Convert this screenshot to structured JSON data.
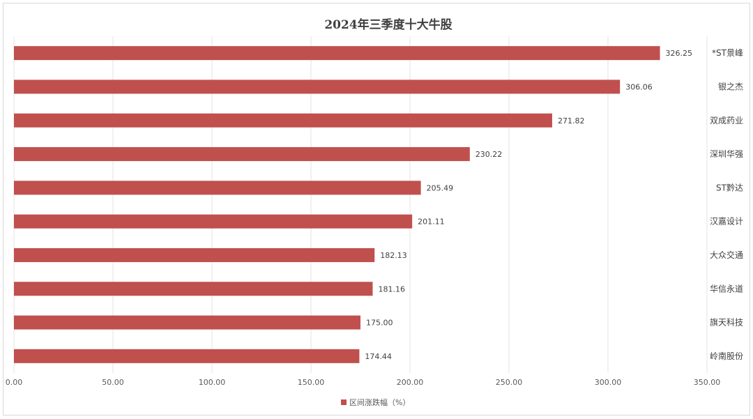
{
  "chart_data": {
    "type": "bar",
    "orientation": "horizontal",
    "title": "2024年三季度十大牛股",
    "categories": [
      "*ST景峰",
      "银之杰",
      "双成药业",
      "深圳华强",
      "ST黔达",
      "汉嘉设计",
      "大众交通",
      "华信永道",
      "旗天科技",
      "岭南股份"
    ],
    "series": [
      {
        "name": "区间涨跌幅（%）",
        "values": [
          326.25,
          306.06,
          271.82,
          230.22,
          205.49,
          201.11,
          182.13,
          181.16,
          175.0,
          174.44
        ],
        "labels": [
          "326.25",
          "306.06",
          "271.82",
          "230.22",
          "205.49",
          "201.11",
          "182.13",
          "181.16",
          "175.00",
          "174.44"
        ]
      }
    ],
    "xlim": [
      0,
      350
    ],
    "x_ticks": [
      "0.00",
      "50.00",
      "100.00",
      "150.00",
      "200.00",
      "250.00",
      "300.00",
      "350.00"
    ],
    "x_tick_values": [
      0,
      50,
      100,
      150,
      200,
      250,
      300,
      350
    ],
    "grid": "vertical",
    "legend_position": "bottom",
    "category_label_side": "right",
    "bar_color": "#c0504d"
  }
}
